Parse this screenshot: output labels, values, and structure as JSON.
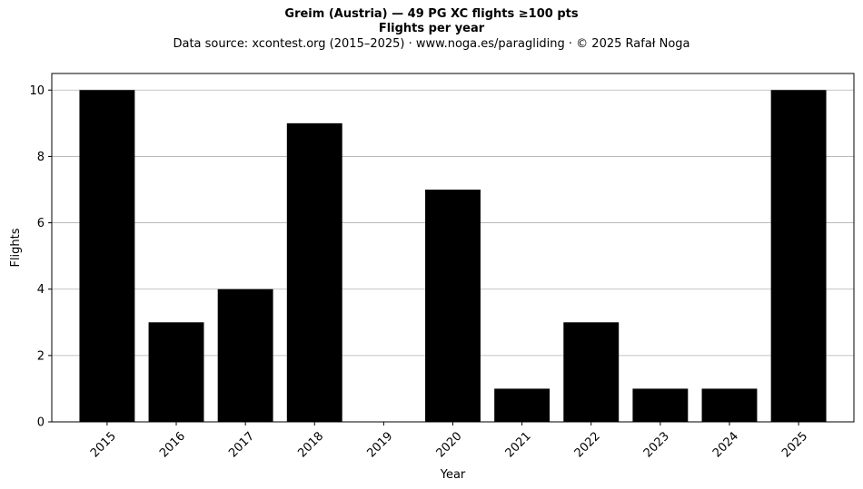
{
  "title": {
    "line1": "Greim (Austria)  —  49 PG XC flights ≥100 pts",
    "line2": "Flights per year",
    "line3": "Data source: xcontest.org (2015–2025)  ·  www.noga.es/paragliding  ·  © 2025 Rafał Noga"
  },
  "chart_data": {
    "type": "bar",
    "categories": [
      "2015",
      "2016",
      "2017",
      "2018",
      "2019",
      "2020",
      "2021",
      "2022",
      "2023",
      "2024",
      "2025"
    ],
    "values": [
      10,
      3,
      4,
      9,
      0,
      7,
      1,
      3,
      1,
      1,
      10
    ],
    "xlabel": "Year",
    "ylabel": "Flights",
    "ylim": [
      0,
      10.5
    ],
    "yticks": [
      0,
      2,
      4,
      6,
      8,
      10
    ],
    "grid": "horizontal",
    "bar_color": "#000000",
    "grid_color": "#b0b0b0"
  }
}
